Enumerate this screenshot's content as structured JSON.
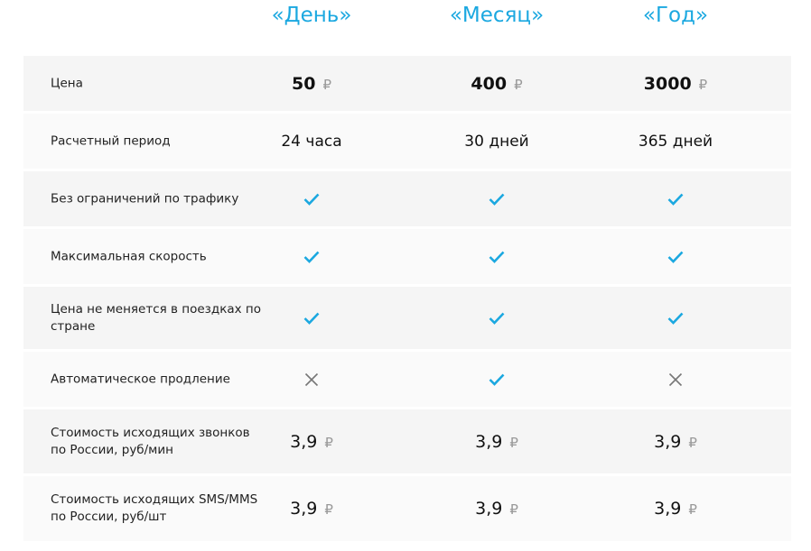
{
  "colors": {
    "accent": "#1ba8e0",
    "cross": "#777777"
  },
  "plans": [
    "«День»",
    "«Месяц»",
    "«Год»"
  ],
  "currency": "₽",
  "rows": [
    {
      "label": "Цена",
      "type": "price",
      "values": [
        "50",
        "400",
        "3000"
      ]
    },
    {
      "label": "Расчетный период",
      "type": "text",
      "values": [
        "24 часа",
        "30 дней",
        "365 дней"
      ]
    },
    {
      "label": "Без ограничений по трафику",
      "type": "bool",
      "values": [
        true,
        true,
        true
      ]
    },
    {
      "label": "Максимальная скорость",
      "type": "bool",
      "values": [
        true,
        true,
        true
      ]
    },
    {
      "label": "Цена не меняется в поездках по стране",
      "type": "bool",
      "values": [
        true,
        true,
        true
      ]
    },
    {
      "label": "Автоматическое продление",
      "type": "bool",
      "values": [
        false,
        true,
        false
      ]
    },
    {
      "label": "Стоимость исходящих звонков по России, руб/мин",
      "type": "money",
      "values": [
        "3,9",
        "3,9",
        "3,9"
      ]
    },
    {
      "label": "Стоимость исходящих SMS/MMS по России, руб/шт",
      "type": "money",
      "values": [
        "3,9",
        "3,9",
        "3,9"
      ]
    }
  ]
}
